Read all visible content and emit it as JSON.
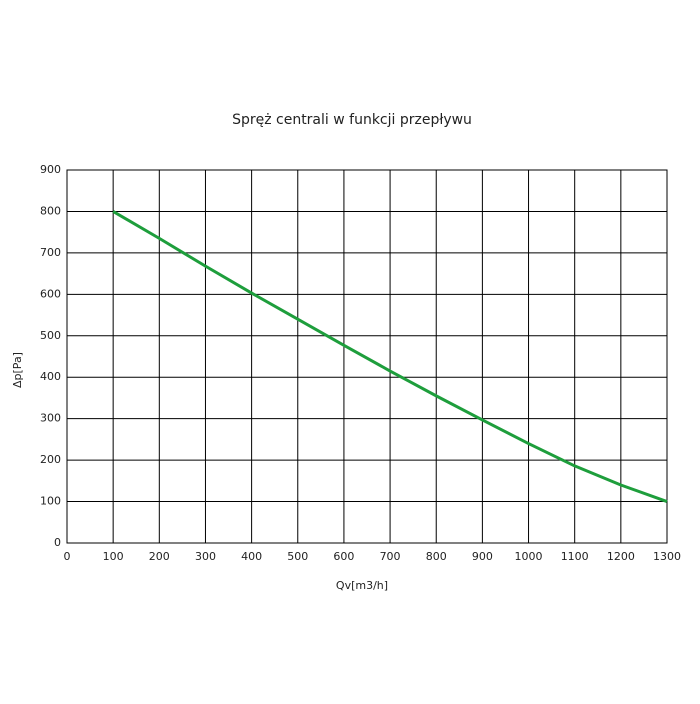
{
  "chart_data": {
    "type": "line",
    "title": "Spręż centrali w funkcji przepływu",
    "x_label": "Qv[m3/h]",
    "y_label": "Δp[Pa]",
    "x": [
      100,
      200,
      300,
      400,
      500,
      600,
      700,
      800,
      900,
      1000,
      1100,
      1200,
      1300
    ],
    "series": [
      {
        "color": "#1e9e3c",
        "values": [
          800,
          735,
          668,
          603,
          540,
          477,
          415,
          355,
          297,
          240,
          186,
          140,
          100
        ]
      }
    ],
    "xlim": [
      0,
      1300
    ],
    "xticks": [
      0,
      100,
      200,
      300,
      400,
      500,
      600,
      700,
      800,
      900,
      1000,
      1100,
      1200,
      1300
    ],
    "ylim": [
      0,
      900
    ],
    "yticks": [
      0,
      100,
      200,
      300,
      400,
      500,
      600,
      700,
      800,
      900
    ],
    "grid": true
  }
}
